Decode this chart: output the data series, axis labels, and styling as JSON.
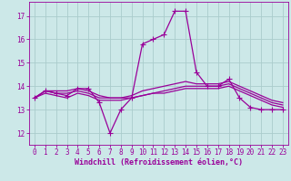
{
  "xlabel": "Windchill (Refroidissement éolien,°C)",
  "x_values": [
    0,
    1,
    2,
    3,
    4,
    5,
    6,
    7,
    8,
    9,
    10,
    11,
    12,
    13,
    14,
    15,
    16,
    17,
    18,
    19,
    20,
    21,
    22,
    23
  ],
  "lines": [
    {
      "y": [
        13.5,
        13.8,
        13.7,
        13.6,
        13.9,
        13.9,
        13.3,
        12.0,
        13.0,
        13.5,
        15.8,
        16.0,
        16.2,
        17.2,
        17.2,
        14.6,
        14.0,
        14.0,
        14.3,
        13.5,
        13.1,
        13.0,
        13.0,
        13.0
      ],
      "color": "#990099",
      "marker": "+"
    },
    {
      "y": [
        13.5,
        13.8,
        13.8,
        13.8,
        13.9,
        13.8,
        13.6,
        13.5,
        13.5,
        13.6,
        13.8,
        13.9,
        14.0,
        14.1,
        14.2,
        14.1,
        14.1,
        14.1,
        14.2,
        14.0,
        13.8,
        13.6,
        13.4,
        13.3
      ],
      "color": "#990099",
      "marker": null
    },
    {
      "y": [
        13.5,
        13.8,
        13.7,
        13.7,
        13.8,
        13.7,
        13.5,
        13.5,
        13.5,
        13.5,
        13.6,
        13.7,
        13.8,
        13.9,
        14.0,
        14.0,
        14.0,
        14.0,
        14.1,
        13.9,
        13.7,
        13.5,
        13.3,
        13.2
      ],
      "color": "#990099",
      "marker": null
    },
    {
      "y": [
        13.5,
        13.7,
        13.6,
        13.5,
        13.7,
        13.6,
        13.4,
        13.4,
        13.4,
        13.5,
        13.6,
        13.7,
        13.7,
        13.8,
        13.9,
        13.9,
        13.9,
        13.9,
        14.0,
        13.8,
        13.6,
        13.4,
        13.2,
        13.1
      ],
      "color": "#990099",
      "marker": null
    }
  ],
  "ylim": [
    11.5,
    17.6
  ],
  "yticks": [
    12,
    13,
    14,
    15,
    16,
    17
  ],
  "xlim": [
    -0.5,
    23.5
  ],
  "xticks": [
    0,
    1,
    2,
    3,
    4,
    5,
    6,
    7,
    8,
    9,
    10,
    11,
    12,
    13,
    14,
    15,
    16,
    17,
    18,
    19,
    20,
    21,
    22,
    23
  ],
  "bg_color": "#cce8e8",
  "grid_color": "#aacccc",
  "line_color": "#990099",
  "marker_size": 4,
  "linewidth": 0.9,
  "tick_fontsize": 5.5,
  "label_fontsize": 6.0
}
